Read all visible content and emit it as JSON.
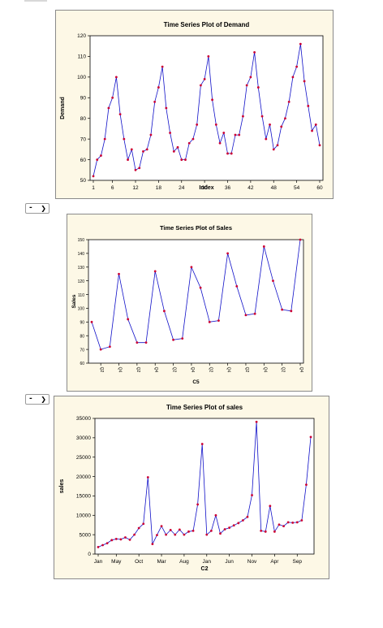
{
  "selects": [
    {
      "value": "-",
      "icon": "chevron-down-icon"
    },
    {
      "value": "-",
      "icon": "chevron-down-icon"
    }
  ],
  "colors": {
    "line": "#1010c8",
    "point": "#cc0033",
    "panel_bg": "#fdf8e6"
  },
  "chart_data": [
    {
      "type": "line",
      "title": "Time Series Plot of Demand",
      "xlabel": "Index",
      "ylabel": "Demand",
      "ylim": [
        50,
        120
      ],
      "yticks": [
        50,
        60,
        70,
        80,
        90,
        100,
        110,
        120
      ],
      "xtick_labels": [
        "1",
        "6",
        "12",
        "18",
        "24",
        "30",
        "36",
        "42",
        "48",
        "54",
        "60"
      ],
      "xtick_index": [
        1,
        6,
        12,
        18,
        24,
        30,
        36,
        42,
        48,
        54,
        60
      ],
      "grid": false,
      "values": [
        52,
        60,
        62,
        70,
        85,
        90,
        100,
        82,
        70,
        60,
        65,
        55,
        56,
        64,
        65,
        72,
        88,
        95,
        105,
        85,
        73,
        64,
        66,
        60,
        60,
        68,
        70,
        77,
        96,
        99,
        110,
        89,
        77,
        68,
        73,
        63,
        63,
        72,
        72,
        81,
        96,
        100,
        112,
        95,
        81,
        70,
        77,
        65,
        67,
        76,
        80,
        88,
        100,
        105,
        116,
        98,
        86,
        74,
        77,
        67
      ]
    },
    {
      "type": "line",
      "title": "Time Series Plot of Sales",
      "xlabel": "C5",
      "ylabel": "Sales",
      "ylim": [
        60,
        150
      ],
      "yticks": [
        60,
        70,
        80,
        90,
        100,
        110,
        120,
        130,
        140,
        150
      ],
      "xtick_labels": [
        "Q2",
        "Q4",
        "Q2",
        "Q4",
        "Q2",
        "Q4",
        "Q2",
        "Q4",
        "Q2",
        "Q4",
        "Q2",
        "Q4"
      ],
      "xtick_index": [
        2,
        4,
        6,
        8,
        10,
        12,
        14,
        16,
        18,
        20,
        22,
        24
      ],
      "grid": false,
      "values": [
        90,
        70,
        72,
        125,
        92,
        75,
        75,
        127,
        98,
        77,
        78,
        130,
        115,
        90,
        91,
        140,
        116,
        95,
        96,
        145,
        120,
        99,
        98,
        150
      ]
    },
    {
      "type": "line",
      "title": "Time Series Plot of sales",
      "xlabel": "C2",
      "ylabel": "sales",
      "ylim": [
        0,
        35000
      ],
      "yticks": [
        0,
        5000,
        10000,
        15000,
        20000,
        25000,
        30000,
        35000
      ],
      "xtick_labels": [
        "Jan",
        "May",
        "Oct",
        "Mar",
        "Aug",
        "Jan",
        "Jun",
        "Nov",
        "Apr",
        "Sep"
      ],
      "xtick_index": [
        1,
        5,
        10,
        15,
        20,
        25,
        30,
        35,
        40,
        45
      ],
      "grid": false,
      "values": [
        1800,
        2300,
        2800,
        3600,
        3900,
        3800,
        4300,
        3700,
        5000,
        6700,
        7800,
        19800,
        2600,
        4900,
        7200,
        5000,
        6200,
        5000,
        6300,
        5000,
        5800,
        6000,
        12800,
        28400,
        5000,
        6000,
        10000,
        5300,
        6400,
        6800,
        7400,
        8000,
        8700,
        9600,
        15200,
        34100,
        6000,
        5800,
        12400,
        5800,
        7600,
        7200,
        8200,
        8100,
        8200,
        8700,
        17900,
        30200
      ]
    }
  ]
}
